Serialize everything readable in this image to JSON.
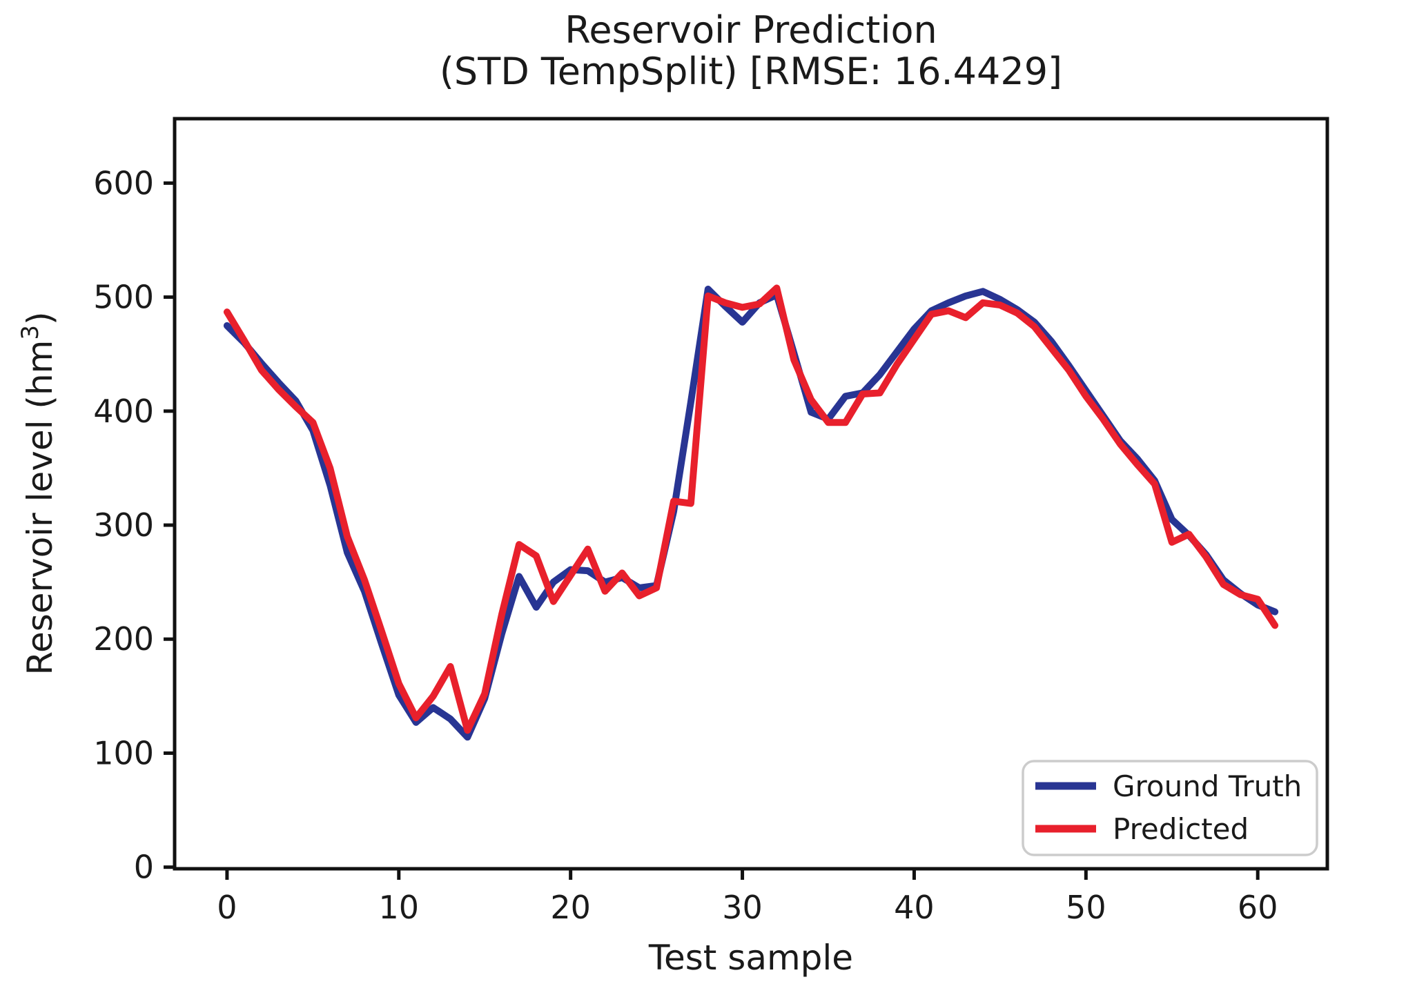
{
  "chart_data": {
    "type": "line",
    "title": "Reservoir Prediction",
    "subtitle": "(STD TempSplit) [RMSE: 16.4429]",
    "xlabel": "Test sample",
    "ylabel": {
      "prefix": "Reservoir level (hm",
      "sup": "3",
      "suffix": ")"
    },
    "xlim": [
      -3.05,
      64.05
    ],
    "ylim": [
      -1.4,
      656.5
    ],
    "xticks": [
      0,
      10,
      20,
      30,
      40,
      50,
      60
    ],
    "yticks": [
      0,
      100,
      200,
      300,
      400,
      500,
      600
    ],
    "grid": false,
    "legend_position": "lower right",
    "x": [
      0,
      1,
      2,
      3,
      4,
      5,
      6,
      7,
      8,
      9,
      10,
      11,
      12,
      13,
      14,
      15,
      16,
      17,
      18,
      19,
      20,
      21,
      22,
      23,
      24,
      25,
      26,
      27,
      28,
      29,
      30,
      31,
      32,
      33,
      34,
      35,
      36,
      37,
      38,
      39,
      40,
      41,
      42,
      43,
      44,
      45,
      46,
      47,
      48,
      49,
      50,
      51,
      52,
      53,
      54,
      55,
      56,
      57,
      58,
      59,
      60,
      61
    ],
    "series": [
      {
        "name": "Ground Truth",
        "color": "#283593",
        "values": [
          475,
          460,
          442,
          425,
          409,
          383,
          335,
          276,
          242,
          196,
          151,
          127,
          140,
          130,
          114,
          148,
          205,
          255,
          228,
          250,
          261,
          260,
          250,
          254,
          245,
          247,
          312,
          408,
          507,
          492,
          478,
          495,
          502,
          451,
          399,
          393,
          413,
          416,
          432,
          452,
          472,
          488,
          495,
          501,
          505,
          498,
          489,
          478,
          461,
          440,
          418,
          396,
          374,
          358,
          339,
          305,
          291,
          274,
          252,
          240,
          230,
          224
        ]
      },
      {
        "name": "Predicted",
        "color": "#e8202c",
        "values": [
          487,
          462,
          436,
          419,
          404,
          390,
          350,
          290,
          252,
          207,
          161,
          131,
          150,
          176,
          120,
          152,
          222,
          283,
          273,
          233,
          256,
          279,
          242,
          258,
          238,
          245,
          321,
          319,
          501,
          495,
          491,
          494,
          508,
          445,
          410,
          390,
          390,
          415,
          416,
          441,
          463,
          485,
          488,
          482,
          495,
          493,
          486,
          474,
          455,
          436,
          413,
          393,
          371,
          353,
          336,
          285,
          292,
          272,
          248,
          239,
          235,
          212
        ]
      }
    ],
    "axis_color": "#111111",
    "legend_border_color": "#cccccc",
    "rmse": "16.4429"
  }
}
